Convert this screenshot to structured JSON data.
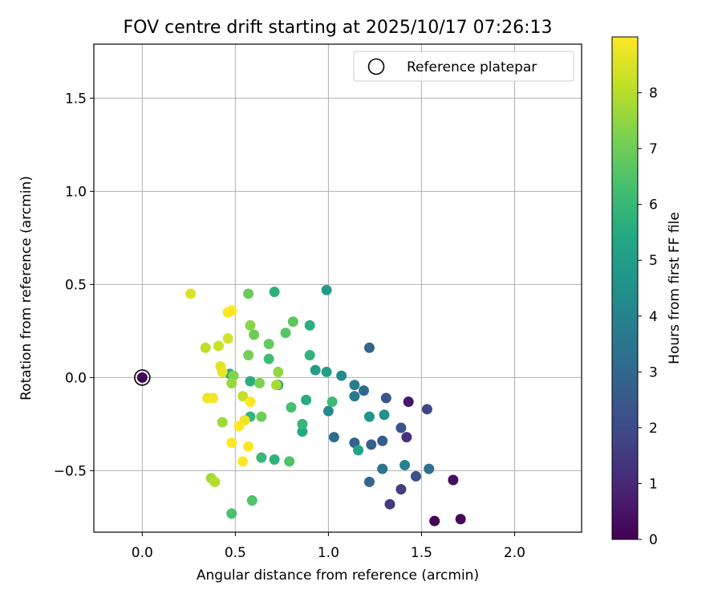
{
  "chart_data": {
    "type": "scatter",
    "title": "FOV centre drift starting at 2025/10/17 07:26:13",
    "xlabel": "Angular distance from reference (arcmin)",
    "ylabel": "Rotation from reference (arcmin)",
    "xlim": [
      -0.26,
      2.36
    ],
    "ylim": [
      -0.83,
      1.79
    ],
    "xticks": [
      0.0,
      0.5,
      1.0,
      1.5,
      2.0
    ],
    "xtick_labels": [
      "0.0",
      "0.5",
      "1.0",
      "1.5",
      "2.0"
    ],
    "yticks": [
      -0.5,
      0.0,
      0.5,
      1.0,
      1.5
    ],
    "ytick_labels": [
      "−0.5",
      "0.0",
      "0.5",
      "1.0",
      "1.5"
    ],
    "grid": true,
    "legend": {
      "placement": "top-right",
      "entries": [
        "Reference platepar"
      ]
    },
    "reference_point": {
      "x": 0.0,
      "y": 0.0,
      "hours": 0.1
    },
    "colorbar": {
      "label": "Hours from first FF file",
      "range": [
        0,
        9
      ],
      "ticks": [
        0,
        1,
        2,
        3,
        4,
        5,
        6,
        7,
        8
      ],
      "tick_labels": [
        "0",
        "1",
        "2",
        "3",
        "4",
        "5",
        "6",
        "7",
        "8"
      ],
      "colormap": "viridis"
    },
    "points": [
      {
        "x": 1.57,
        "y": -0.77,
        "h": 0.05
      },
      {
        "x": 1.71,
        "y": -0.76,
        "h": 0.15
      },
      {
        "x": 1.67,
        "y": -0.55,
        "h": 0.3
      },
      {
        "x": 1.43,
        "y": -0.13,
        "h": 0.6
      },
      {
        "x": 1.42,
        "y": -0.32,
        "h": 1.3
      },
      {
        "x": 1.33,
        "y": -0.68,
        "h": 1.5
      },
      {
        "x": 1.39,
        "y": -0.6,
        "h": 1.6
      },
      {
        "x": 1.53,
        "y": -0.17,
        "h": 1.9
      },
      {
        "x": 1.47,
        "y": -0.53,
        "h": 2.2
      },
      {
        "x": 1.31,
        "y": -0.11,
        "h": 2.4
      },
      {
        "x": 1.39,
        "y": -0.27,
        "h": 2.3
      },
      {
        "x": 1.29,
        "y": -0.34,
        "h": 2.6
      },
      {
        "x": 1.23,
        "y": -0.36,
        "h": 2.7
      },
      {
        "x": 1.14,
        "y": -0.35,
        "h": 2.8
      },
      {
        "x": 1.22,
        "y": -0.56,
        "h": 2.9
      },
      {
        "x": 1.22,
        "y": 0.16,
        "h": 2.9
      },
      {
        "x": 1.19,
        "y": -0.07,
        "h": 3.1
      },
      {
        "x": 1.03,
        "y": -0.32,
        "h": 3.2
      },
      {
        "x": 1.54,
        "y": -0.49,
        "h": 3.3
      },
      {
        "x": 1.29,
        "y": -0.49,
        "h": 3.5
      },
      {
        "x": 1.14,
        "y": -0.1,
        "h": 3.6
      },
      {
        "x": 1.14,
        "y": -0.04,
        "h": 3.8
      },
      {
        "x": 1.41,
        "y": -0.47,
        "h": 4.0
      },
      {
        "x": 1.0,
        "y": -0.18,
        "h": 4.2
      },
      {
        "x": 1.07,
        "y": 0.01,
        "h": 4.3
      },
      {
        "x": 1.3,
        "y": -0.2,
        "h": 4.5
      },
      {
        "x": 1.22,
        "y": -0.21,
        "h": 4.6
      },
      {
        "x": 0.99,
        "y": 0.47,
        "h": 4.9
      },
      {
        "x": 0.93,
        "y": 0.04,
        "h": 5.0
      },
      {
        "x": 0.99,
        "y": 0.03,
        "h": 5.1
      },
      {
        "x": 0.73,
        "y": -0.04,
        "h": 5.1
      },
      {
        "x": 1.16,
        "y": -0.39,
        "h": 5.3
      },
      {
        "x": 0.86,
        "y": -0.29,
        "h": 5.4
      },
      {
        "x": 0.88,
        "y": -0.12,
        "h": 5.5
      },
      {
        "x": 0.58,
        "y": -0.02,
        "h": 5.6
      },
      {
        "x": 0.9,
        "y": 0.28,
        "h": 5.6
      },
      {
        "x": 0.71,
        "y": 0.46,
        "h": 5.7
      },
      {
        "x": 0.47,
        "y": 0.02,
        "h": 5.7
      },
      {
        "x": 0.71,
        "y": -0.44,
        "h": 5.8
      },
      {
        "x": 0.9,
        "y": 0.12,
        "h": 5.8
      },
      {
        "x": 0.58,
        "y": -0.21,
        "h": 5.9
      },
      {
        "x": 0.86,
        "y": -0.25,
        "h": 6.0
      },
      {
        "x": 0.64,
        "y": -0.43,
        "h": 6.0
      },
      {
        "x": 1.02,
        "y": -0.13,
        "h": 6.1
      },
      {
        "x": 0.68,
        "y": 0.1,
        "h": 6.2
      },
      {
        "x": 0.8,
        "y": -0.16,
        "h": 6.3
      },
      {
        "x": 0.48,
        "y": -0.73,
        "h": 6.4
      },
      {
        "x": 0.79,
        "y": -0.45,
        "h": 6.5
      },
      {
        "x": 0.59,
        "y": -0.66,
        "h": 6.5
      },
      {
        "x": 0.77,
        "y": 0.24,
        "h": 6.6
      },
      {
        "x": 0.81,
        "y": 0.3,
        "h": 6.7
      },
      {
        "x": 0.68,
        "y": 0.18,
        "h": 6.8
      },
      {
        "x": 0.57,
        "y": 0.45,
        "h": 6.9
      },
      {
        "x": 0.6,
        "y": 0.23,
        "h": 7.0
      },
      {
        "x": 0.64,
        "y": -0.21,
        "h": 7.0
      },
      {
        "x": 0.57,
        "y": 0.12,
        "h": 7.1
      },
      {
        "x": 0.63,
        "y": -0.03,
        "h": 7.2
      },
      {
        "x": 0.49,
        "y": 0.01,
        "h": 7.3
      },
      {
        "x": 0.58,
        "y": 0.28,
        "h": 7.4
      },
      {
        "x": 0.73,
        "y": 0.03,
        "h": 7.5
      },
      {
        "x": 0.48,
        "y": -0.03,
        "h": 7.6
      },
      {
        "x": 0.43,
        "y": -0.24,
        "h": 7.7
      },
      {
        "x": 0.37,
        "y": -0.54,
        "h": 7.7
      },
      {
        "x": 0.72,
        "y": -0.04,
        "h": 7.8
      },
      {
        "x": 0.39,
        "y": -0.56,
        "h": 8.0
      },
      {
        "x": 0.34,
        "y": 0.16,
        "h": 8.1
      },
      {
        "x": 0.54,
        "y": -0.1,
        "h": 8.2
      },
      {
        "x": 0.41,
        "y": 0.17,
        "h": 8.3
      },
      {
        "x": 0.46,
        "y": 0.21,
        "h": 8.4
      },
      {
        "x": 0.26,
        "y": 0.45,
        "h": 8.5
      },
      {
        "x": 0.42,
        "y": 0.06,
        "h": 8.6
      },
      {
        "x": 0.43,
        "y": 0.03,
        "h": 8.7
      },
      {
        "x": 0.55,
        "y": -0.23,
        "h": 8.8
      },
      {
        "x": 0.35,
        "y": -0.11,
        "h": 8.8
      },
      {
        "x": 0.38,
        "y": -0.11,
        "h": 8.9
      },
      {
        "x": 0.46,
        "y": 0.35,
        "h": 8.9
      },
      {
        "x": 0.48,
        "y": 0.36,
        "h": 9.0
      },
      {
        "x": 0.52,
        "y": -0.26,
        "h": 9.0
      },
      {
        "x": 0.48,
        "y": -0.35,
        "h": 9.0
      },
      {
        "x": 0.57,
        "y": -0.37,
        "h": 9.0
      },
      {
        "x": 0.54,
        "y": -0.45,
        "h": 9.0
      },
      {
        "x": 0.58,
        "y": -0.13,
        "h": 9.0
      }
    ]
  }
}
